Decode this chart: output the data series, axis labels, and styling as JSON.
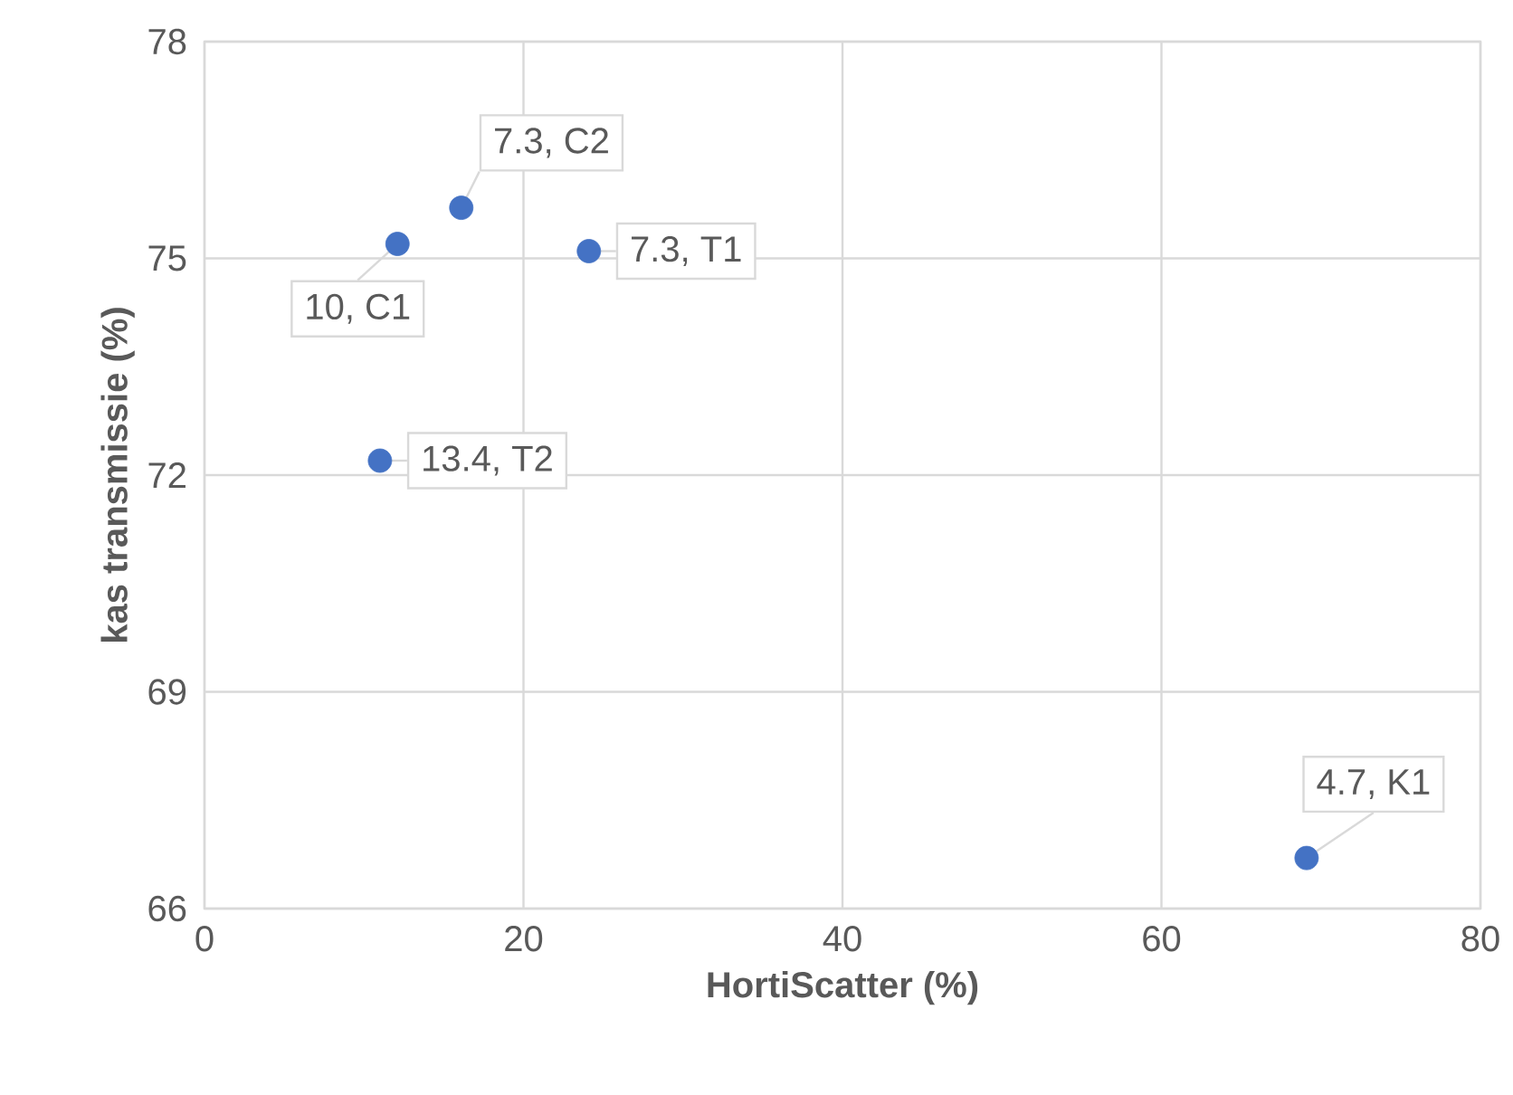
{
  "chart_data": {
    "type": "scatter",
    "xlabel": "HortiScatter (%)",
    "ylabel": "kas transmissie (%)",
    "series": [
      {
        "color": "#4472c4",
        "x": [
          12.1,
          16.1,
          24.1,
          11.0,
          69.1
        ],
        "values": [
          75.2,
          75.7,
          75.1,
          72.2,
          66.7
        ]
      }
    ],
    "xlim": [
      0,
      80
    ],
    "ylim": [
      66,
      78
    ],
    "xticks": [
      0,
      20,
      40,
      60,
      80
    ],
    "yticks": [
      66,
      69,
      72,
      75,
      78
    ],
    "grid": true,
    "marker": "circle",
    "annotations": [
      {
        "text": "7.3, C2",
        "x": 16.1,
        "y": 75.7
      },
      {
        "text": "10, C1",
        "x": 12.1,
        "y": 75.2
      },
      {
        "text": "7.3, T1",
        "x": 24.1,
        "y": 75.1
      },
      {
        "text": "13.4, T2",
        "x": 11.0,
        "y": 72.2
      },
      {
        "text": "4.7, K1",
        "x": 69.1,
        "y": 66.7
      }
    ]
  }
}
